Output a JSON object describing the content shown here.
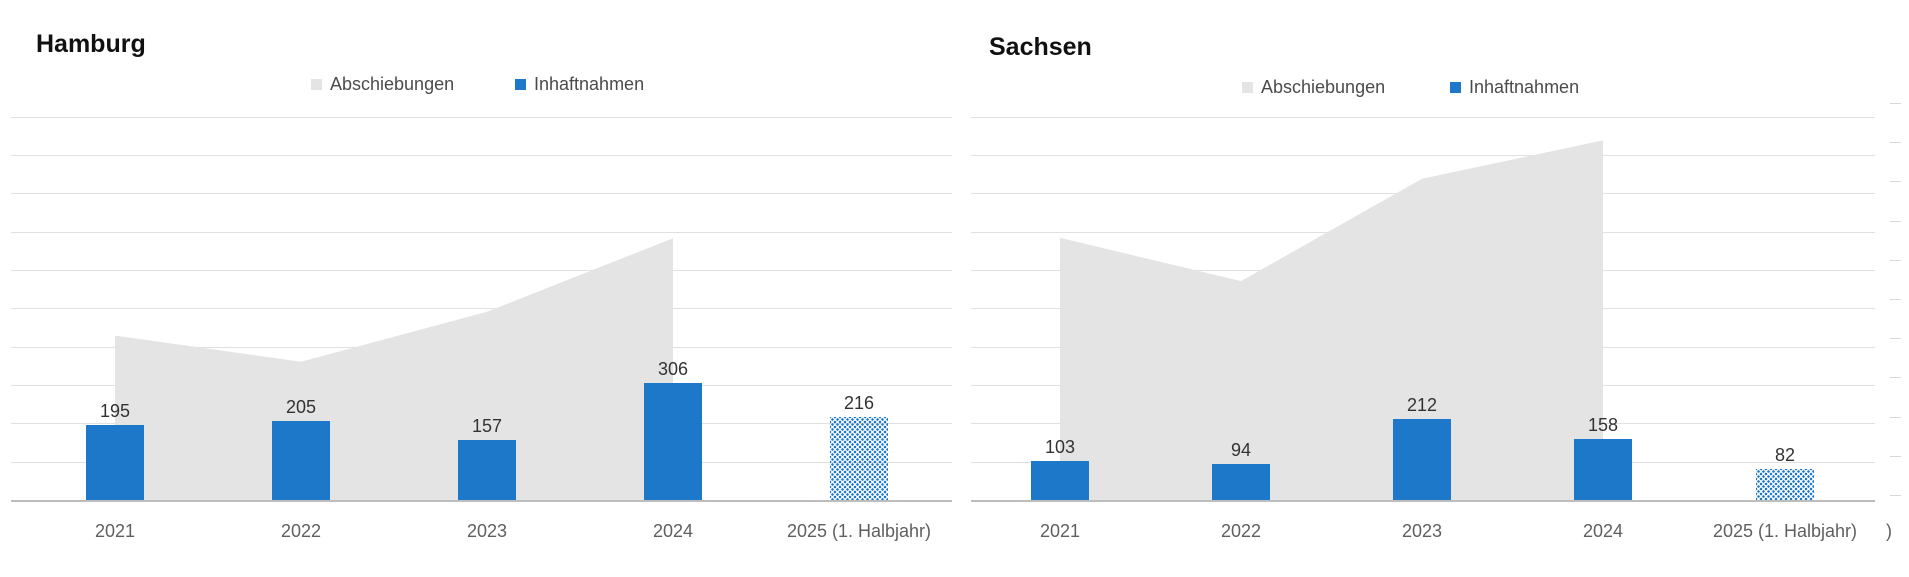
{
  "colors": {
    "bar_blue": "#1e78c9",
    "area_gray": "#e4e4e4",
    "gridline": "#e0e0e0",
    "axis_line": "#bdbdbd"
  },
  "chart_data": [
    {
      "type": "area+bar combo",
      "title": "Hamburg",
      "categories": [
        "2021",
        "2022",
        "2023",
        "2024",
        "2025 (1. Halbjahr)"
      ],
      "series": [
        {
          "name": "Abschiebungen",
          "type": "area",
          "values": [
            430,
            362,
            492,
            684,
            null
          ],
          "note": "values unlabeled, estimated from pixels"
        },
        {
          "name": "Inhaftnahmen",
          "type": "bar",
          "values": [
            195,
            205,
            157,
            306,
            216
          ],
          "last_bar_style": "dotted"
        }
      ],
      "bar_value_labels": [
        "195",
        "205",
        "157",
        "306",
        "216"
      ],
      "ylim": [
        0,
        1000
      ],
      "gridline_step": 100,
      "grid": "horizontal",
      "legend_position": "top-center",
      "y_axis_labels": "none"
    },
    {
      "type": "area+bar combo",
      "title": "Sachsen",
      "categories": [
        "2021",
        "2022",
        "2023",
        "2024",
        "2025 (1. Halbjahr)"
      ],
      "series": [
        {
          "name": "Abschiebungen",
          "type": "area",
          "values": [
            685,
            572,
            839,
            939,
            null
          ],
          "note": "values unlabeled, estimated from pixels"
        },
        {
          "name": "Inhaftnahmen",
          "type": "bar",
          "values": [
            103,
            94,
            212,
            158,
            82
          ],
          "last_bar_style": "dotted"
        }
      ],
      "bar_value_labels": [
        "103",
        "94",
        "212",
        "158",
        "82"
      ],
      "ylim": [
        0,
        1000
      ],
      "gridline_step": 100,
      "grid": "horizontal",
      "legend_position": "top-center",
      "y_axis_labels": "none"
    }
  ],
  "artifacts": {
    "clipped_chart_fragment": ")"
  }
}
